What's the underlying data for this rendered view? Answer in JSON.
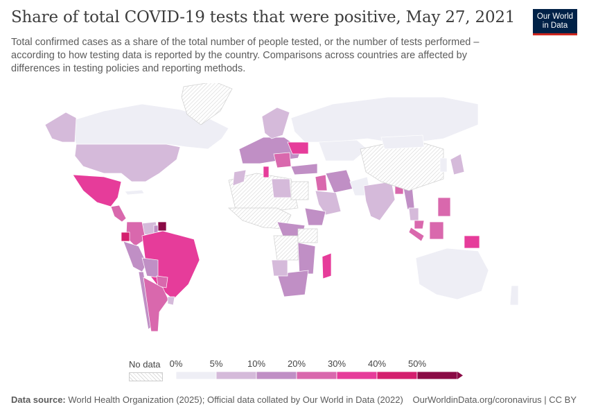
{
  "title": "Share of total COVID-19 tests that were positive, May 27, 2021",
  "subtitle": "Total confirmed cases as a share of the total number of people tested, or the number of tests performed – according to how testing data is reported by the country. Comparisons across countries are affected by differences in testing policies and reporting methods.",
  "logo": {
    "line1": "Our World",
    "line2": "in Data"
  },
  "legend": {
    "no_data_label": "No data",
    "ticks": [
      "0%",
      "5%",
      "10%",
      "20%",
      "30%",
      "40%",
      "50%"
    ],
    "colors": [
      "#eeeef5",
      "#d5bada",
      "#c08fc5",
      "#d968ad",
      "#e63c9a",
      "#d41f6e",
      "#8a0a45"
    ]
  },
  "colors": {
    "no_data": "#ececec",
    "bin_0_5": "#eeeef5",
    "bin_5_10": "#d5bada",
    "bin_10_20": "#c08fc5",
    "bin_20_30": "#d968ad",
    "bin_30_40": "#e63c9a",
    "bin_40_50": "#d41f6e",
    "bin_50_plus": "#8a0a45"
  },
  "regions": [
    {
      "name": "Canada",
      "bin": "bin_0_5"
    },
    {
      "name": "Alaska (United States)",
      "bin": "bin_5_10"
    },
    {
      "name": "United States",
      "bin": "bin_5_10"
    },
    {
      "name": "Greenland",
      "bin": "no_data"
    },
    {
      "name": "Mexico",
      "bin": "bin_30_40"
    },
    {
      "name": "Central America",
      "bin": "bin_20_30"
    },
    {
      "name": "Cuba",
      "bin": "bin_0_5"
    },
    {
      "name": "Venezuela",
      "bin": "bin_5_10"
    },
    {
      "name": "Colombia",
      "bin": "bin_20_30"
    },
    {
      "name": "Ecuador",
      "bin": "bin_40_50"
    },
    {
      "name": "Suriname",
      "bin": "bin_50_plus"
    },
    {
      "name": "Guyana",
      "bin": "bin_10_20"
    },
    {
      "name": "Peru",
      "bin": "bin_10_20"
    },
    {
      "name": "Brazil",
      "bin": "bin_30_40"
    },
    {
      "name": "Bolivia",
      "bin": "bin_10_20"
    },
    {
      "name": "Paraguay",
      "bin": "bin_20_30"
    },
    {
      "name": "Chile",
      "bin": "bin_10_20"
    },
    {
      "name": "Argentina",
      "bin": "bin_20_30"
    },
    {
      "name": "Uruguay",
      "bin": "bin_5_10"
    },
    {
      "name": "Europe West",
      "bin": "bin_10_20"
    },
    {
      "name": "Scandinavia",
      "bin": "bin_5_10"
    },
    {
      "name": "Ukraine",
      "bin": "bin_30_40"
    },
    {
      "name": "Balkans",
      "bin": "bin_20_30"
    },
    {
      "name": "Russia",
      "bin": "bin_0_5"
    },
    {
      "name": "Kazakhstan",
      "bin": "bin_0_5"
    },
    {
      "name": "Turkey",
      "bin": "bin_10_20"
    },
    {
      "name": "Iran",
      "bin": "bin_10_20"
    },
    {
      "name": "Iraq",
      "bin": "bin_20_30"
    },
    {
      "name": "Saudi Arabia",
      "bin": "bin_5_10"
    },
    {
      "name": "North Africa",
      "bin": "no_data"
    },
    {
      "name": "Morocco",
      "bin": "bin_5_10"
    },
    {
      "name": "Tunisia",
      "bin": "bin_30_40"
    },
    {
      "name": "Libya",
      "bin": "bin_5_10"
    },
    {
      "name": "Egypt",
      "bin": "no_data"
    },
    {
      "name": "Sahel",
      "bin": "no_data"
    },
    {
      "name": "Ethiopia",
      "bin": "bin_10_20"
    },
    {
      "name": "Central Africa",
      "bin": "bin_10_20"
    },
    {
      "name": "DR Congo",
      "bin": "no_data"
    },
    {
      "name": "Southern Africa East",
      "bin": "bin_10_20"
    },
    {
      "name": "Tanzania",
      "bin": "no_data"
    },
    {
      "name": "South Africa",
      "bin": "bin_10_20"
    },
    {
      "name": "Namibia",
      "bin": "bin_5_10"
    },
    {
      "name": "Madagascar",
      "bin": "bin_30_40"
    },
    {
      "name": "Pakistan",
      "bin": "bin_0_5"
    },
    {
      "name": "India",
      "bin": "bin_5_10"
    },
    {
      "name": "Bangladesh",
      "bin": "bin_20_30"
    },
    {
      "name": "Myanmar",
      "bin": "bin_10_20"
    },
    {
      "name": "China",
      "bin": "no_data"
    },
    {
      "name": "Mongolia",
      "bin": "bin_0_5"
    },
    {
      "name": "Thailand",
      "bin": "bin_5_10"
    },
    {
      "name": "Malaysia",
      "bin": "bin_20_30"
    },
    {
      "name": "Sumatra",
      "bin": "bin_20_30"
    },
    {
      "name": "Borneo",
      "bin": "bin_20_30"
    },
    {
      "name": "Philippines",
      "bin": "bin_20_30"
    },
    {
      "name": "Papua New Guinea",
      "bin": "bin_30_40"
    },
    {
      "name": "Japan",
      "bin": "bin_5_10"
    },
    {
      "name": "Korea",
      "bin": "bin_0_5"
    },
    {
      "name": "Australia",
      "bin": "bin_0_5"
    },
    {
      "name": "New Zealand",
      "bin": "bin_0_5"
    }
  ],
  "footer": {
    "source_label": "Data source:",
    "source_text": "World Health Organization (2025); Official data collated by Our World in Data (2022)",
    "right": "OurWorldinData.org/coronavirus | CC BY"
  }
}
